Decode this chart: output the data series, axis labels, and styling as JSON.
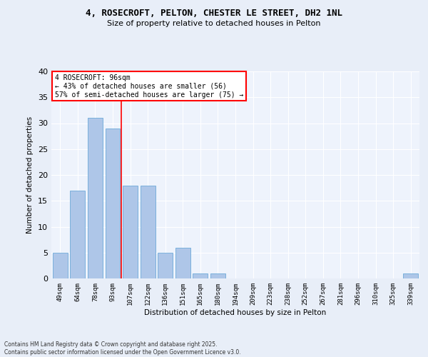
{
  "title1": "4, ROSECROFT, PELTON, CHESTER LE STREET, DH2 1NL",
  "title2": "Size of property relative to detached houses in Pelton",
  "xlabel": "Distribution of detached houses by size in Pelton",
  "ylabel": "Number of detached properties",
  "categories": [
    "49sqm",
    "64sqm",
    "78sqm",
    "93sqm",
    "107sqm",
    "122sqm",
    "136sqm",
    "151sqm",
    "165sqm",
    "180sqm",
    "194sqm",
    "209sqm",
    "223sqm",
    "238sqm",
    "252sqm",
    "267sqm",
    "281sqm",
    "296sqm",
    "310sqm",
    "325sqm",
    "339sqm"
  ],
  "values": [
    5,
    17,
    31,
    29,
    18,
    18,
    5,
    6,
    1,
    1,
    0,
    0,
    0,
    0,
    0,
    0,
    0,
    0,
    0,
    0,
    1
  ],
  "bar_color": "#aec6e8",
  "bar_edgecolor": "#5a9fd4",
  "red_line_x": 3.5,
  "ylim": [
    0,
    40
  ],
  "yticks": [
    0,
    5,
    10,
    15,
    20,
    25,
    30,
    35,
    40
  ],
  "annotation_title": "4 ROSECROFT: 96sqm",
  "annotation_line1": "← 43% of detached houses are smaller (56)",
  "annotation_line2": "57% of semi-detached houses are larger (75) →",
  "footer1": "Contains HM Land Registry data © Crown copyright and database right 2025.",
  "footer2": "Contains public sector information licensed under the Open Government Licence v3.0.",
  "bg_color": "#e8eef8",
  "plot_bg_color": "#eef3fc"
}
